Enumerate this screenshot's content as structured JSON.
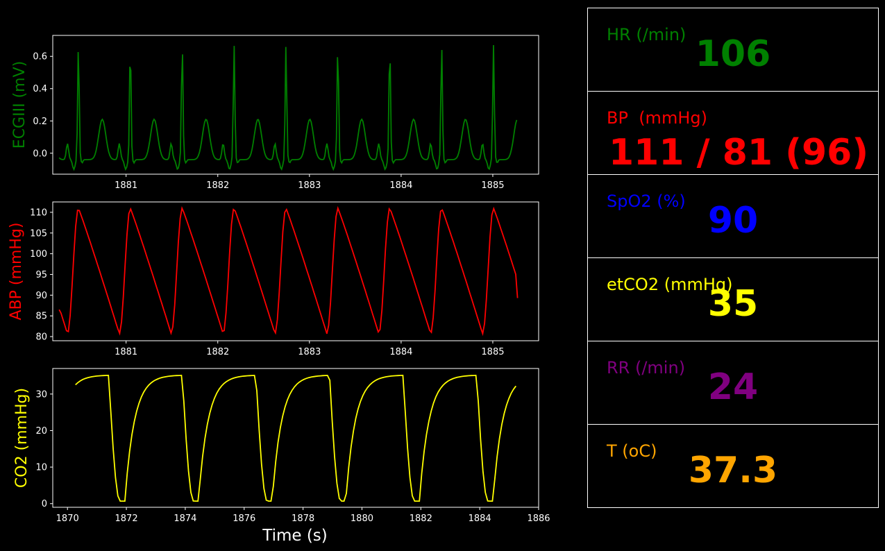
{
  "chart_data": [
    {
      "type": "line",
      "ylabel": "ECGIII (mV)",
      "color": "#008000",
      "xlim": [
        1880.2,
        1885.5
      ],
      "ylim": [
        -0.13,
        0.73
      ],
      "x_ticks": [
        1881,
        1882,
        1883,
        1884,
        1885
      ],
      "y_ticks": [
        0.0,
        0.2,
        0.4,
        0.6
      ],
      "y_tick_labels": [
        "0.0",
        "0.2",
        "0.4",
        "0.6"
      ],
      "series": [
        {
          "waveform": "ecg",
          "x_start": 1880.27,
          "x_end": 1885.27,
          "beat_period": 0.566,
          "first_r_peak": 1880.48,
          "r_peak": 0.67,
          "baseline": -0.04,
          "t_wave_peak": 0.21,
          "min": -0.09
        }
      ]
    },
    {
      "type": "line",
      "ylabel": "ABP (mmHg)",
      "color": "#ff0000",
      "xlim": [
        1880.2,
        1885.5
      ],
      "ylim": [
        79.0,
        112.5
      ],
      "x_ticks": [
        1881,
        1882,
        1883,
        1884,
        1885
      ],
      "y_ticks": [
        80,
        85,
        90,
        95,
        100,
        105,
        110
      ],
      "y_tick_labels": [
        "80",
        "85",
        "90",
        "95",
        "100",
        "105",
        "110"
      ],
      "series": [
        {
          "waveform": "abp",
          "x_start": 1880.27,
          "x_end": 1885.27,
          "beat_period": 0.566,
          "first_min": 1880.36,
          "min": 80.7,
          "max": 111.0,
          "start_value": 86.5,
          "end_value": 89.3
        }
      ]
    },
    {
      "type": "line",
      "ylabel": "CO2 (mmHg)",
      "xlabel": "Time (s)",
      "color": "#ffff00",
      "xlim": [
        1869.5,
        1886.0
      ],
      "ylim": [
        -1.0,
        37.0
      ],
      "x_ticks": [
        1870,
        1872,
        1874,
        1876,
        1878,
        1880,
        1882,
        1884,
        1886
      ],
      "y_ticks": [
        0,
        10,
        20,
        30
      ],
      "y_tick_labels": [
        "0",
        "10",
        "20",
        "30"
      ],
      "series": [
        {
          "waveform": "co2",
          "x_start": 1870.27,
          "x_end": 1885.27,
          "breath_period": 2.5,
          "first_drop": 1871.4,
          "plateau": 35.2,
          "min": 0.7,
          "start_value": 32.0
        }
      ]
    }
  ],
  "vitals": [
    {
      "label": "HR (/min)",
      "value": "106",
      "color": "#008000"
    },
    {
      "label": "BP  (mmHg)",
      "value": "111 / 81 (96)",
      "color": "#ff0000"
    },
    {
      "label": "SpO2 (%)",
      "value": "90",
      "color": "#0000ff"
    },
    {
      "label": "etCO2 (mmHg)",
      "value": "35",
      "color": "#ffff00"
    },
    {
      "label": "RR (/min)",
      "value": "24",
      "color": "#800080"
    },
    {
      "label": "T (oC)",
      "value": "37.3",
      "color": "#ffa500"
    }
  ]
}
